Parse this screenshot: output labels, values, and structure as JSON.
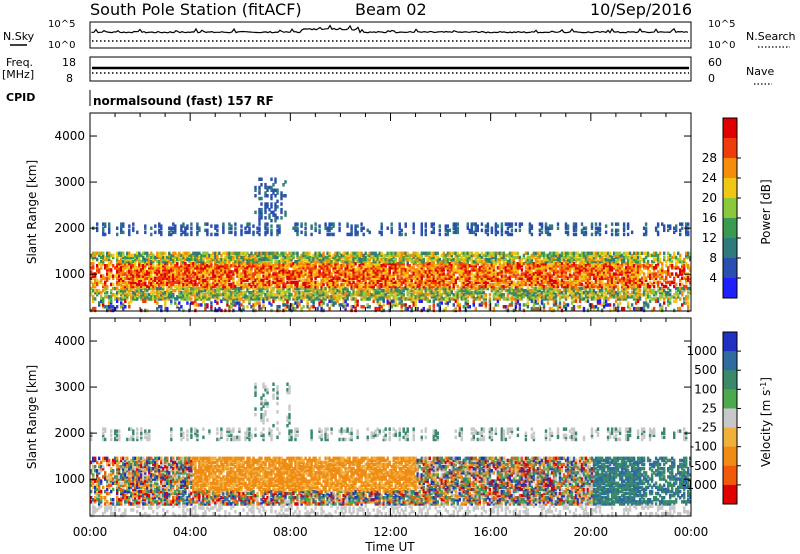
{
  "header": {
    "station": "South Pole Station (fitACF)",
    "beam": "Beam 02",
    "date": "10/Sep/2016"
  },
  "params": {
    "nsky_label": "N.Sky",
    "nsky_ticks": [
      "10^5",
      "10^0"
    ],
    "nsearch_label": "N.Search",
    "nsearch_ticks": [
      "10^5",
      "10^0"
    ],
    "freq_label_1": "Freq.",
    "freq_label_2": "[MHz]",
    "freq_ticks": [
      "18",
      "8"
    ],
    "nave_label": "Nave",
    "nave_ticks": [
      "60",
      "0"
    ],
    "cpid_label": "CPID",
    "cpid_value": "normalsound (fast) 157 RF"
  },
  "chart_data": [
    {
      "type": "heatmap",
      "name": "power",
      "ylabel": "Slant Range [km]",
      "yticks": [
        "1000",
        "2000",
        "3000",
        "4000"
      ],
      "ylim": [
        200,
        4500
      ],
      "xlim": [
        0,
        24
      ],
      "xticks": [
        "00:00",
        "04:00",
        "08:00",
        "12:00",
        "16:00",
        "20:00",
        "00:00"
      ],
      "colorbar": {
        "label": "Power [dB]",
        "ticks": [
          "4",
          "8",
          "12",
          "16",
          "20",
          "24",
          "28"
        ],
        "colors": [
          "#1f1fff",
          "#2a4fb0",
          "#2f7a7a",
          "#3a9a50",
          "#8cc83c",
          "#f0c814",
          "#f58c0a",
          "#f03c0a",
          "#e00000"
        ]
      }
    },
    {
      "type": "heatmap",
      "name": "velocity",
      "ylabel": "Slant Range [km]",
      "yticks": [
        "1000",
        "2000",
        "3000",
        "4000"
      ],
      "ylim": [
        200,
        4500
      ],
      "xlim": [
        0,
        24
      ],
      "xticks": [
        "00:00",
        "04:00",
        "08:00",
        "12:00",
        "16:00",
        "20:00",
        "00:00"
      ],
      "xlabel": "Time UT",
      "colorbar": {
        "label": "Velocity [m s^-1]",
        "ticks": [
          "1000",
          "500",
          "100",
          "25",
          "-25",
          "-100",
          "-500",
          "-1000"
        ],
        "colors": [
          "#2030c0",
          "#2f6aa0",
          "#3a8a6a",
          "#4caa4c",
          "#c8c8c8",
          "#f0b03c",
          "#f08c14",
          "#f05a0a",
          "#e00000"
        ]
      }
    }
  ]
}
